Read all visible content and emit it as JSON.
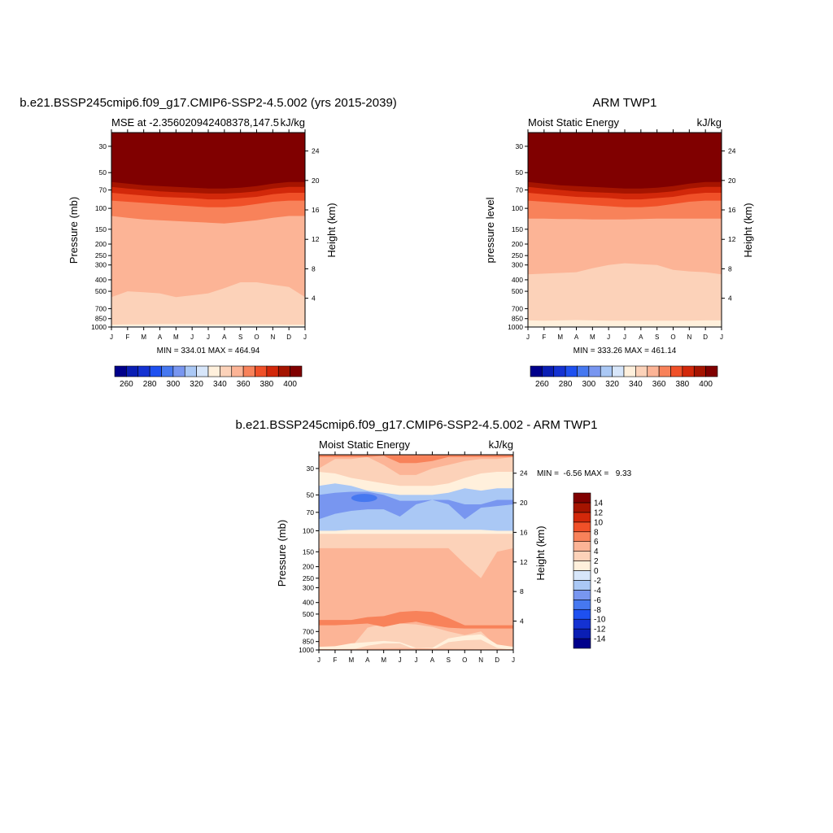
{
  "chart_data": [
    {
      "type": "contour",
      "title": "b.e21.BSSP245cmip6.f09_g17.CMIP6-SSP2-4.5.002 (yrs 2015-2039)",
      "subtitle_left": "MSE at -2.356020942408378,147.5",
      "subtitle_right": "kJ/kg",
      "xlabel": "",
      "ylabel_left": "Pressure (mb)",
      "ylabel_right": "Height (km)",
      "x_ticks": [
        "J",
        "F",
        "M",
        "A",
        "M",
        "J",
        "J",
        "A",
        "S",
        "O",
        "N",
        "D",
        "J"
      ],
      "y_ticks_pressure": [
        30,
        50,
        70,
        100,
        150,
        200,
        250,
        300,
        400,
        500,
        700,
        850,
        1000
      ],
      "y_ticks_height_km": [
        24,
        20,
        16,
        12,
        8,
        4
      ],
      "ylim_mb": [
        1000,
        23
      ],
      "stats": "MIN = 334.01 MAX = 464.94",
      "levels": [
        250,
        260,
        270,
        280,
        290,
        300,
        310,
        320,
        330,
        340,
        350,
        360,
        370,
        380,
        390,
        400,
        410
      ],
      "colorbar_labels": [
        "260",
        "280",
        "300",
        "320",
        "340",
        "360",
        "380",
        "400"
      ],
      "contour_boundaries_mb": [
        {
          "level": 410,
          "p": [
            56,
            58,
            60,
            61,
            61,
            62,
            63,
            63,
            62,
            60,
            57,
            55,
            55
          ]
        },
        {
          "level": 400,
          "p": [
            60,
            62,
            64,
            65,
            66,
            67,
            68,
            68,
            67,
            65,
            62,
            60,
            60
          ]
        },
        {
          "level": 390,
          "p": [
            66,
            68,
            70,
            72,
            73,
            74,
            75,
            75,
            74,
            72,
            68,
            66,
            66
          ]
        },
        {
          "level": 380,
          "p": [
            74,
            76,
            78,
            80,
            81,
            82,
            84,
            84,
            82,
            80,
            76,
            74,
            74
          ]
        },
        {
          "level": 370,
          "p": [
            86,
            88,
            90,
            92,
            94,
            96,
            98,
            98,
            96,
            92,
            88,
            86,
            86
          ]
        },
        {
          "level": 360,
          "p": [
            116,
            120,
            124,
            126,
            128,
            130,
            132,
            134,
            130,
            126,
            120,
            116,
            116
          ]
        },
        {
          "level": 350,
          "p": [
            560,
            500,
            510,
            520,
            560,
            540,
            520,
            470,
            420,
            420,
            440,
            460,
            560
          ]
        },
        {
          "level": 340,
          "p": [
            955,
            950,
            950,
            945,
            945,
            945,
            950,
            950,
            950,
            950,
            950,
            955,
            955
          ]
        },
        {
          "level": 330,
          "p": [
            985,
            985,
            985,
            982,
            982,
            982,
            985,
            985,
            985,
            985,
            985,
            985,
            985
          ]
        }
      ]
    },
    {
      "type": "contour",
      "title": "ARM TWP1",
      "subtitle_left": "Moist Static Energy",
      "subtitle_right": "kJ/kg",
      "ylabel_left": "pressure level",
      "ylabel_right": "Height (km)",
      "x_ticks": [
        "J",
        "F",
        "M",
        "A",
        "M",
        "J",
        "J",
        "A",
        "S",
        "O",
        "N",
        "D",
        "J"
      ],
      "y_ticks_pressure": [
        30,
        50,
        70,
        100,
        150,
        200,
        250,
        300,
        400,
        500,
        700,
        850,
        1000
      ],
      "y_ticks_height_km": [
        24,
        20,
        16,
        12,
        8,
        4
      ],
      "ylim_mb": [
        1000,
        23
      ],
      "stats": "MIN = 333.26 MAX = 461.14",
      "levels": [
        250,
        260,
        270,
        280,
        290,
        300,
        310,
        320,
        330,
        340,
        350,
        360,
        370,
        380,
        390,
        400,
        410
      ],
      "colorbar_labels": [
        "260",
        "280",
        "300",
        "320",
        "340",
        "360",
        "380",
        "400"
      ],
      "contour_boundaries_mb": [
        {
          "level": 410,
          "p": [
            56,
            58,
            60,
            61,
            61,
            62,
            63,
            63,
            62,
            60,
            57,
            55,
            55
          ]
        },
        {
          "level": 400,
          "p": [
            60,
            62,
            64,
            65,
            66,
            67,
            68,
            68,
            67,
            65,
            62,
            60,
            60
          ]
        },
        {
          "level": 390,
          "p": [
            66,
            68,
            70,
            72,
            73,
            74,
            75,
            75,
            74,
            72,
            68,
            66,
            66
          ]
        },
        {
          "level": 380,
          "p": [
            74,
            76,
            78,
            80,
            81,
            82,
            84,
            84,
            82,
            80,
            76,
            74,
            74
          ]
        },
        {
          "level": 370,
          "p": [
            86,
            88,
            90,
            92,
            94,
            96,
            98,
            98,
            96,
            92,
            88,
            86,
            86
          ]
        },
        {
          "level": 360,
          "p": [
            122,
            122,
            123,
            123,
            124,
            124,
            124,
            123,
            122,
            122,
            122,
            122,
            122
          ]
        },
        {
          "level": 350,
          "p": [
            360,
            355,
            350,
            345,
            320,
            300,
            290,
            295,
            300,
            330,
            340,
            345,
            360
          ]
        },
        {
          "level": 340,
          "p": [
            880,
            885,
            880,
            875,
            880,
            885,
            885,
            885,
            885,
            885,
            885,
            880,
            880
          ]
        },
        {
          "level": 330,
          "p": [
            990,
            990,
            990,
            990,
            990,
            990,
            990,
            990,
            990,
            990,
            990,
            990,
            990
          ]
        }
      ]
    },
    {
      "type": "contour",
      "title": "b.e21.BSSP245cmip6.f09_g17.CMIP6-SSP2-4.5.002 - ARM TWP1",
      "subtitle_left": "Moist Static Energy",
      "subtitle_right": "kJ/kg",
      "ylabel_left": "Pressure (mb)",
      "ylabel_right": "Height (km)",
      "x_ticks": [
        "J",
        "F",
        "M",
        "A",
        "M",
        "J",
        "J",
        "A",
        "S",
        "O",
        "N",
        "D",
        "J"
      ],
      "y_ticks_pressure": [
        30,
        50,
        70,
        100,
        150,
        200,
        250,
        300,
        400,
        500,
        700,
        850,
        1000
      ],
      "y_ticks_height_km": [
        24,
        20,
        16,
        12,
        8,
        4
      ],
      "ylim_mb": [
        1000,
        23
      ],
      "stats": "MIN =  -6.56 MAX =   9.33",
      "levels": [
        -16,
        -14,
        -12,
        -10,
        -8,
        -6,
        -4,
        -2,
        0,
        2,
        4,
        6,
        8,
        10,
        12,
        14,
        16
      ],
      "colorbar_labels": [
        "14",
        "12",
        "10",
        "8",
        "6",
        "4",
        "2",
        "0",
        "-2",
        "-4",
        "-6",
        "-8",
        "-10",
        "-12",
        "-14"
      ],
      "background_level": 2,
      "regions": [
        {
          "level": 4,
          "p": [
            [
              30,
              25,
              25,
              24,
              28,
              34,
              34,
              30,
              28,
              26,
              25,
              25,
              24
            ],
            [
              23,
              23,
              23,
              23,
              23,
              23,
              23,
              23,
              23,
              23,
              23,
              23,
              23
            ]
          ]
        },
        {
          "level": 6,
          "p": [
            [
              24,
              24,
              24,
              24,
              23.5,
              27,
              27,
              26,
              24,
              24,
              24,
              24,
              24
            ],
            [
              23,
              23,
              23,
              23,
              23,
              23,
              23,
              23,
              23,
              23,
              23,
              23,
              23
            ]
          ]
        },
        {
          "level": 0,
          "p": [
            [
              106,
              106,
              106,
              106,
              106,
              106,
              106,
              106,
              106,
              106,
              106,
              106,
              106
            ],
            [
              32,
              33,
              36,
              38,
              40,
              42,
              42,
              42,
              40,
              36,
              33,
              32,
              32
            ]
          ]
        },
        {
          "level": -2,
          "p": [
            [
              100,
              100,
              98,
              98,
              98,
              98,
              98,
              98,
              98,
              98,
              98,
              100,
              100
            ],
            [
              42,
              40,
              42,
              46,
              48,
              50,
              50,
              50,
              48,
              44,
              46,
              44,
              44
            ]
          ]
        },
        {
          "level": -4,
          "p": [
            [
              80,
              72,
              68,
              66,
              66,
              76,
              60,
              55,
              60,
              80,
              64,
              62,
              60
            ],
            [
              50,
              48,
              47,
              47,
              50,
              56,
              56,
              55,
              55,
              60,
              60,
              55,
              55
            ]
          ]
        },
        {
          "level": 4,
          "p": [
            [
              960,
              955,
              950,
              650,
              600,
              600,
              610,
              640,
              700,
              750,
              700,
              940,
              960
            ],
            [
              140,
              140,
              140,
              140,
              140,
              140,
              140,
              140,
              140,
              190,
              250,
              150,
              140
            ]
          ]
        },
        {
          "level": 6,
          "p": [
            [
              620,
              620,
              610,
              600,
              640,
              600,
              580,
              620,
              650,
              660,
              660,
              660,
              660
            ],
            [
              560,
              560,
              560,
              530,
              520,
              480,
              470,
              480,
              540,
              620,
              620,
              620,
              620
            ]
          ]
        },
        {
          "level": 0,
          "p": [
            [
              1000,
              1000,
              1000,
              920,
              880,
              880,
              1000,
              1000,
              860,
              830,
              820,
              960,
              1000
            ],
            [
              940,
              930,
              880,
              860,
              840,
              860,
              960,
              960,
              800,
              760,
              740,
              900,
              940
            ]
          ]
        },
        {
          "level": 4,
          "p": [
            [
              1000,
              1000,
              1000,
              1000,
              1000,
              1000,
              1000,
              1000,
              1000,
              1000,
              1000,
              1000,
              1000
            ],
            [
              985,
              985,
              980,
              975,
              970,
              965,
              965,
              970,
              975,
              980,
              985,
              985,
              985
            ]
          ]
        }
      ]
    }
  ]
}
